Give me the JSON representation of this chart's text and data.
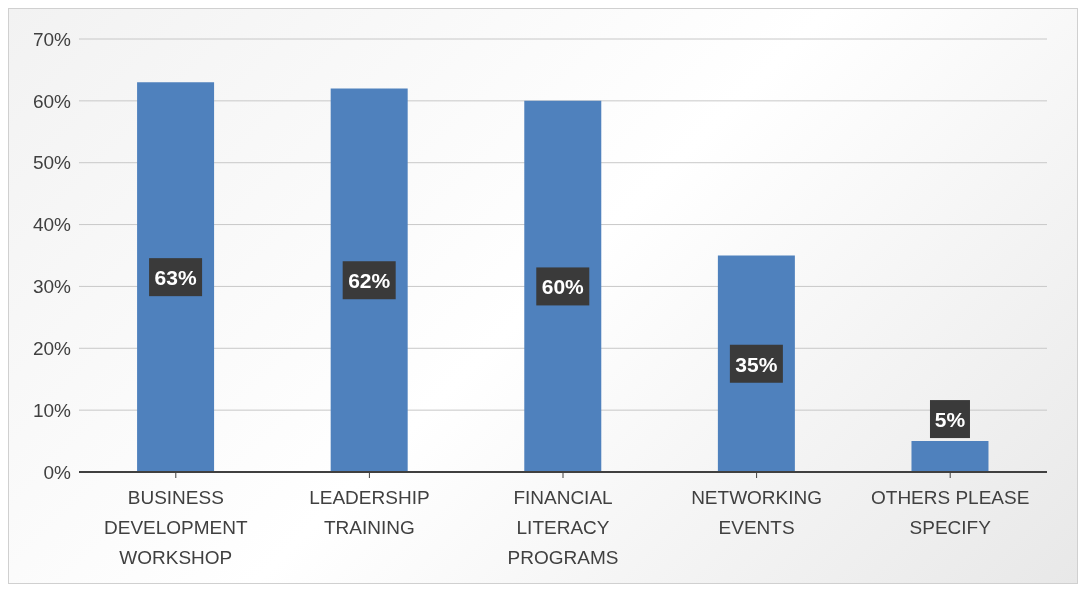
{
  "chart_data": {
    "type": "bar",
    "categories": [
      "BUSINESS DEVELOPMENT WORKSHOP",
      "LEADERSHIP TRAINING",
      "FINANCIAL LITERACY PROGRAMS",
      "NETWORKING EVENTS",
      "OTHERS PLEASE SPECIFY"
    ],
    "values": [
      63,
      62,
      60,
      35,
      5
    ],
    "value_labels": [
      "63%",
      "62%",
      "60%",
      "35%",
      "5%"
    ],
    "color": "#4f81bd",
    "ylim": [
      0,
      70
    ],
    "yticks": [
      {
        "value": 0,
        "label": "0%"
      },
      {
        "value": 10,
        "label": "10%"
      },
      {
        "value": 20,
        "label": "20%"
      },
      {
        "value": 30,
        "label": "30%"
      },
      {
        "value": 40,
        "label": "40%"
      },
      {
        "value": 50,
        "label": "50%"
      },
      {
        "value": 60,
        "label": "60%"
      },
      {
        "value": 70,
        "label": "70%"
      }
    ],
    "grid": "y",
    "legend": false
  }
}
